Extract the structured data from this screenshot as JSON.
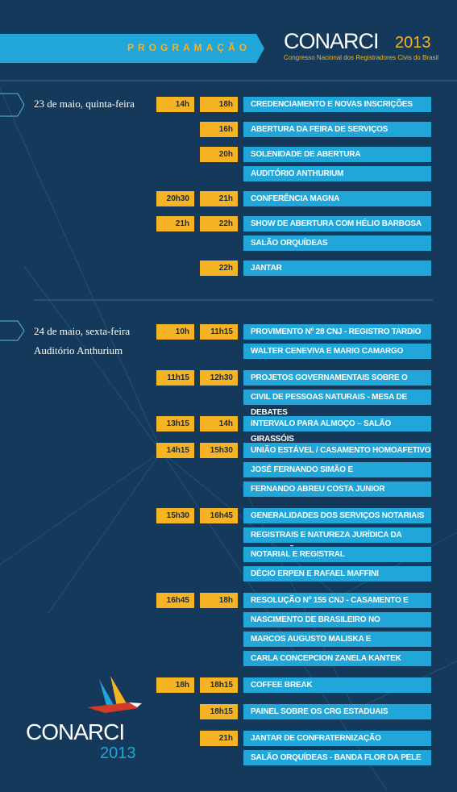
{
  "header": {
    "title": "PROGRAMAÇÃO",
    "brand": "CONARCI",
    "year": "2013",
    "subtitle": "Congresso Nacional dos Registradores Civis do Brasil"
  },
  "days": [
    {
      "date": "23 de maio, quinta-feira",
      "events": [
        {
          "start": "14h",
          "end": "18h",
          "lines": [
            "CREDENCIAMENTO E NOVAS INSCRIÇÕES"
          ]
        },
        {
          "end": "16h",
          "lines": [
            "ABERTURA DA FEIRA DE SERVIÇOS"
          ]
        },
        {
          "end": "20h",
          "lines": [
            "SOLENIDADE DE ABERTURA",
            "AUDITÓRIO ANTHURIUM"
          ]
        },
        {
          "start": "20h30",
          "end": "21h",
          "lines": [
            "CONFERÊNCIA MAGNA"
          ]
        },
        {
          "start": "21h",
          "end": "22h",
          "lines": [
            "SHOW DE ABERTURA COM HÉLIO BARBOSA",
            "SALÃO ORQUÍDEAS"
          ]
        },
        {
          "end": "22h",
          "lines": [
            "JANTAR"
          ]
        }
      ]
    },
    {
      "date": "24 de maio, sexta-feira",
      "venue": "Auditório Anthurium",
      "events": [
        {
          "start": "10h",
          "end": "11h15",
          "lines": [
            "PROVIMENTO Nº 28 CNJ - REGISTRO TARDIO",
            "WALTER CENEVIVA E MARIO CAMARGO"
          ]
        },
        {
          "start": "11h15",
          "end": "12h30",
          "lines": [
            "PROJETOS GOVERNAMENTAIS SOBRE O REGISTRO",
            "CIVIL DE PESSOAS NATURAIS - MESA DE DEBATES"
          ]
        },
        {
          "start": "13h15",
          "end": "14h",
          "lines": [
            "INTERVALO PARA ALMOÇO – SALÃO GIRASSÓIS"
          ]
        },
        {
          "start": "14h15",
          "end": "15h30",
          "lines": [
            "UNIÃO ESTÁVEL / CASAMENTO HOMOAFETIVO",
            "JOSÉ FERNANDO SIMÃO E",
            "FERNANDO ABREU COSTA JUNIOR"
          ]
        },
        {
          "start": "15h30",
          "end": "16h45",
          "lines": [
            "GENERALIDADES DOS SERVIÇOS NOTARIAIS E",
            "REGISTRAIS E NATUREZA JURÍDICA DA DELEGAÇÃO",
            "NOTARIAL E REGISTRAL",
            "DÉCIO ERPEN E RAFAEL MAFFINI"
          ]
        },
        {
          "start": "16h45",
          "end": "18h",
          "lines": [
            "RESOLUÇÃO Nº 155 CNJ - CASAMENTO E",
            "NASCIMENTO DE BRASILEIRO NO ESTRANGEIRO",
            "MARCOS AUGUSTO MALISKA E",
            "CARLA CONCEPCION ZANELA KANTEK"
          ]
        },
        {
          "start": "18h",
          "end": "18h15",
          "lines": [
            "COFFEE BREAK"
          ]
        },
        {
          "end": "18h15",
          "lines": [
            "PAINEL SOBRE OS CRG ESTADUAIS"
          ]
        },
        {
          "end": "21h",
          "lines": [
            "JANTAR DE CONFRATERNIZAÇÃO",
            "SALÃO ORQUÍDEAS - BANDA FLOR DA PELE"
          ]
        }
      ]
    }
  ],
  "footer": {
    "brand": "CONARCI",
    "year": "2013"
  }
}
